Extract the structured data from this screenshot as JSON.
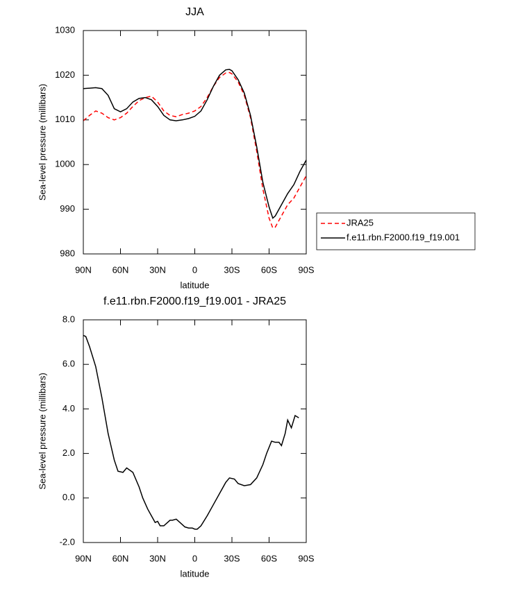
{
  "chart_data": [
    {
      "type": "line",
      "title": "JJA",
      "x_label": "latitude",
      "y_label": "Sea-level pressure (millibars)",
      "xlim": [
        90,
        -90
      ],
      "ylim": [
        980,
        1030
      ],
      "xticks": [
        {
          "value": 90,
          "label": "90N"
        },
        {
          "value": 60,
          "label": "60N"
        },
        {
          "value": 30,
          "label": "30N"
        },
        0,
        {
          "value": -30,
          "label": "30S"
        },
        {
          "value": -60,
          "label": "60S"
        },
        {
          "value": -90,
          "label": "90S"
        }
      ],
      "yticks": [
        980,
        990,
        1000,
        1010,
        1020,
        1030
      ],
      "x": [
        90,
        85,
        80,
        75,
        70,
        65,
        60,
        55,
        50,
        45,
        40,
        35,
        30,
        25,
        20,
        15,
        10,
        5,
        0,
        -5,
        -10,
        -15,
        -20,
        -25,
        -28,
        -30,
        -35,
        -40,
        -45,
        -50,
        -55,
        -60,
        -63,
        -65,
        -70,
        -75,
        -80,
        -85,
        -90
      ],
      "legend": "right",
      "series": [
        {
          "name": "JRA25",
          "color": "#ff0000",
          "dashed": true,
          "values": [
            1009.8,
            1011,
            1012,
            1011.5,
            1010.5,
            1010,
            1010.5,
            1011.5,
            1013,
            1014.3,
            1015,
            1015.3,
            1014,
            1012,
            1011,
            1010.7,
            1011.2,
            1011.5,
            1012,
            1013,
            1015,
            1017.5,
            1019.5,
            1020.5,
            1020.6,
            1020.3,
            1018.5,
            1015.5,
            1010.5,
            1003,
            994.5,
            988,
            985.8,
            986,
            988.5,
            991,
            992.5,
            995,
            997.5
          ]
        },
        {
          "name": "f.e11.rbn.F2000.f19_f19.001",
          "color": "#000000",
          "dashed": false,
          "values": [
            1017,
            1017.1,
            1017.2,
            1017,
            1015.5,
            1012.5,
            1011.8,
            1012.5,
            1014,
            1014.8,
            1015,
            1014.5,
            1013,
            1011,
            1010,
            1009.8,
            1010,
            1010.3,
            1010.8,
            1012,
            1014.5,
            1017.5,
            1020,
            1021.2,
            1021.3,
            1021,
            1019,
            1016,
            1011,
            1004,
            996,
            990.5,
            988,
            988.5,
            991,
            993.5,
            995.5,
            998.5,
            1001
          ]
        }
      ]
    },
    {
      "type": "line",
      "title": "f.e11.rbn.F2000.f19_f19.001 - JRA25",
      "x_label": "latitude",
      "y_label": "Sea-level pressure (millibars)",
      "xlim": [
        90,
        -90
      ],
      "ylim": [
        -2,
        8
      ],
      "xticks": [
        {
          "value": 90,
          "label": "90N"
        },
        {
          "value": 60,
          "label": "60N"
        },
        {
          "value": 30,
          "label": "30N"
        },
        0,
        {
          "value": -30,
          "label": "30S"
        },
        {
          "value": -60,
          "label": "60S"
        },
        {
          "value": -90,
          "label": "90S"
        }
      ],
      "yticks": [
        {
          "value": -2,
          "label": "-2.0"
        },
        {
          "value": 0,
          "label": "0.0"
        },
        {
          "value": 2,
          "label": "2.0"
        },
        {
          "value": 4,
          "label": "4.0"
        },
        {
          "value": 6,
          "label": "6.0"
        },
        {
          "value": 8,
          "label": "8.0"
        }
      ],
      "x": [
        90,
        88,
        85,
        80,
        75,
        70,
        65,
        62,
        58,
        55,
        50,
        45,
        42,
        38,
        35,
        32,
        30,
        28,
        25,
        20,
        18,
        15,
        12,
        8,
        5,
        2,
        0,
        -2,
        -5,
        -10,
        -15,
        -20,
        -25,
        -28,
        -32,
        -35,
        -40,
        -45,
        -50,
        -55,
        -58,
        -62,
        -65,
        -68,
        -70,
        -73,
        -75,
        -78,
        -81,
        -84
      ],
      "series": [
        {
          "color": "#000000",
          "dashed": false,
          "values": [
            7.3,
            7.25,
            6.8,
            5.9,
            4.5,
            2.9,
            1.7,
            1.2,
            1.15,
            1.35,
            1.15,
            0.5,
            0.0,
            -0.5,
            -0.8,
            -1.1,
            -1.05,
            -1.25,
            -1.25,
            -1.0,
            -1.0,
            -0.95,
            -1.1,
            -1.3,
            -1.35,
            -1.35,
            -1.4,
            -1.4,
            -1.25,
            -0.8,
            -0.3,
            0.2,
            0.7,
            0.9,
            0.85,
            0.65,
            0.55,
            0.6,
            0.9,
            1.5,
            2.0,
            2.55,
            2.5,
            2.5,
            2.35,
            2.9,
            3.5,
            3.15,
            3.7,
            3.6
          ]
        }
      ]
    }
  ]
}
